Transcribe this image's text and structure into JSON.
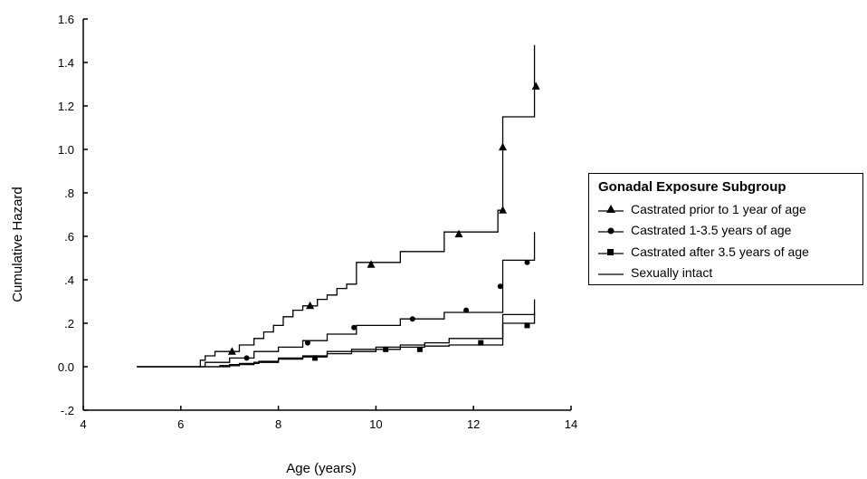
{
  "chart_data": {
    "type": "line",
    "step": true,
    "xlabel": "Age (years)",
    "ylabel": "Cumulative Hazard",
    "xlim": [
      4,
      14
    ],
    "ylim": [
      -0.2,
      1.6
    ],
    "x_ticks": [
      4,
      6,
      8,
      10,
      12,
      14
    ],
    "x_tick_labels": [
      "4",
      "6",
      "8",
      "10",
      "12",
      "14"
    ],
    "y_ticks": [
      -0.2,
      0.0,
      0.2,
      0.4,
      0.6,
      0.8,
      1.0,
      1.2,
      1.4,
      1.6
    ],
    "y_tick_labels": [
      "-.2",
      "0.0",
      ".2",
      ".4",
      ".6",
      ".8",
      "1.0",
      "1.2",
      "1.4",
      "1.6"
    ],
    "grid": false,
    "legend": {
      "title": "Gonadal Exposure Subgroup",
      "placement": "right"
    },
    "series": [
      {
        "name": "Castrated prior to 1 year of age",
        "marker": "triangle",
        "x": [
          5.1,
          6.4,
          6.5,
          6.7,
          7.2,
          7.5,
          7.7,
          7.9,
          8.1,
          8.3,
          8.5,
          8.8,
          9.0,
          9.2,
          9.4,
          9.6,
          10.0,
          10.5,
          11.4,
          12.5,
          12.6,
          13.2,
          13.25
        ],
        "y": [
          0.0,
          0.03,
          0.05,
          0.07,
          0.1,
          0.13,
          0.16,
          0.19,
          0.23,
          0.26,
          0.28,
          0.31,
          0.33,
          0.36,
          0.38,
          0.48,
          0.48,
          0.53,
          0.62,
          0.72,
          1.15,
          1.15,
          1.48
        ],
        "marker_x": [
          7.05,
          8.65,
          9.9,
          11.7,
          12.6,
          12.6,
          13.28
        ],
        "marker_y": [
          0.07,
          0.28,
          0.47,
          0.61,
          0.72,
          1.01,
          1.29
        ]
      },
      {
        "name": "Castrated 1-3.5 years of age",
        "marker": "circle",
        "x": [
          5.1,
          6.5,
          7.0,
          7.5,
          8.0,
          8.5,
          9.0,
          9.6,
          10.5,
          11.4,
          12.6,
          13.25
        ],
        "y": [
          0.0,
          0.02,
          0.04,
          0.07,
          0.09,
          0.12,
          0.15,
          0.19,
          0.22,
          0.25,
          0.49,
          0.62
        ],
        "marker_x": [
          7.35,
          8.6,
          9.55,
          10.75,
          11.85,
          12.55,
          13.1
        ],
        "marker_y": [
          0.04,
          0.11,
          0.18,
          0.22,
          0.26,
          0.37,
          0.48
        ]
      },
      {
        "name": "Castrated after 3.5 years of age",
        "marker": "square",
        "x": [
          5.1,
          7.0,
          7.5,
          8.0,
          8.5,
          9.0,
          9.5,
          10.0,
          10.5,
          11.0,
          11.5,
          12.6,
          13.25
        ],
        "y": [
          0.0,
          0.01,
          0.02,
          0.04,
          0.05,
          0.07,
          0.08,
          0.09,
          0.1,
          0.11,
          0.13,
          0.24,
          0.31
        ],
        "marker_x": [
          8.75,
          10.2,
          10.9,
          12.15,
          13.1
        ],
        "marker_y": [
          0.04,
          0.08,
          0.08,
          0.11,
          0.19
        ]
      },
      {
        "name": "Sexually intact",
        "marker": "none",
        "x": [
          5.1,
          6.8,
          7.2,
          7.6,
          8.0,
          8.5,
          9.0,
          9.5,
          10.0,
          10.5,
          11.0,
          11.5,
          12.6,
          13.25
        ],
        "y": [
          0.0,
          0.005,
          0.015,
          0.025,
          0.035,
          0.045,
          0.06,
          0.07,
          0.08,
          0.09,
          0.095,
          0.1,
          0.2,
          0.25
        ],
        "marker_x": [],
        "marker_y": []
      }
    ]
  }
}
